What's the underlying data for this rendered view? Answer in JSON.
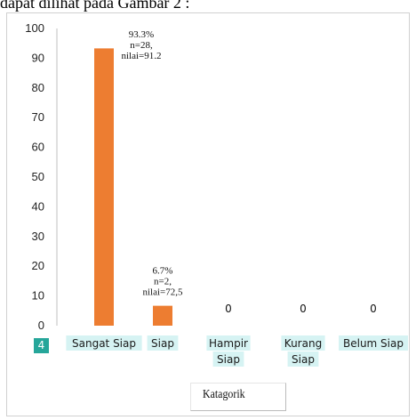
{
  "caption": "dapat dilihat pada Gambar 2 :",
  "badge": "4",
  "chart_data": {
    "type": "bar",
    "title": "",
    "xlabel": "Katagorik",
    "ylabel": "",
    "ylim": [
      0,
      100
    ],
    "yticks": [
      0,
      10,
      20,
      30,
      40,
      50,
      60,
      70,
      80,
      90,
      100
    ],
    "categories": [
      "Sangat Siap",
      "Siap",
      "Hampir Siap",
      "Kurang Siap",
      "Belum Siap"
    ],
    "category_lines": [
      [
        "Sangat Siap"
      ],
      [
        "Siap"
      ],
      [
        "Hampir",
        "Siap"
      ],
      [
        "Kurang",
        "Siap"
      ],
      [
        "Belum Siap"
      ]
    ],
    "values": [
      93.3,
      6.7,
      0,
      0,
      0
    ],
    "annotations": [
      [
        "93.3%",
        "n=28,",
        "nilai=91.2"
      ],
      [
        "6.7%",
        "n=2,",
        "nilai=72,5"
      ],
      [
        "0"
      ],
      [
        "0"
      ],
      [
        "0"
      ]
    ],
    "bar_color": "#ed7d31",
    "label_highlight": "#d6f3f3",
    "grid": false
  }
}
